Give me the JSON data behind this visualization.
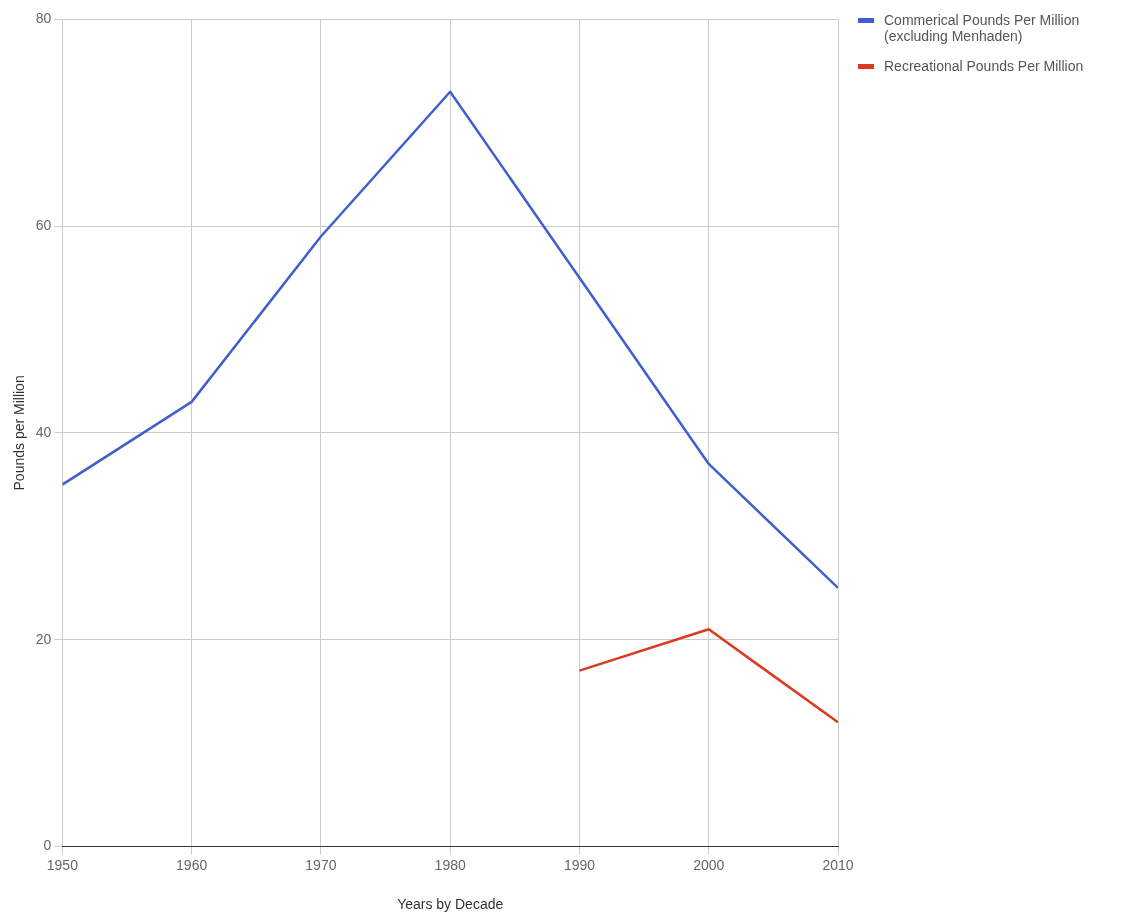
{
  "chart_data": {
    "type": "line",
    "xlabel": "Years by Decade",
    "ylabel": "Pounds per Million",
    "x": [
      1950,
      1960,
      1970,
      1980,
      1990,
      2000,
      2010
    ],
    "series": [
      {
        "name": "Commerical Pounds Per Million (excluding Menhaden)",
        "color": "#3f5fcf",
        "values": [
          35,
          43,
          59,
          73,
          55,
          37,
          25
        ]
      },
      {
        "name": "Recreational Pounds Per Million",
        "color": "#db3a1f",
        "values": [
          null,
          null,
          null,
          null,
          17,
          21,
          12
        ]
      }
    ],
    "xlim": [
      1950,
      2010
    ],
    "xticks": [
      1950,
      1960,
      1970,
      1980,
      1990,
      2000,
      2010
    ],
    "ylim": [
      0,
      80
    ],
    "yticks": [
      0,
      20,
      40,
      60,
      80
    ],
    "grid": true,
    "legend": "top right",
    "marker": "none",
    "line_style": "solid"
  }
}
